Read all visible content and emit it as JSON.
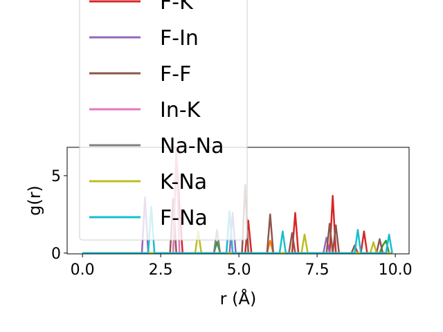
{
  "chart_data": {
    "type": "line",
    "x_label": "r (Å)",
    "y_label": "g(r)",
    "xlim": [
      -0.49,
      10.44
    ],
    "ylim": [
      -0.05,
      6.83
    ],
    "xticks": [
      {
        "value": 0,
        "label": "0.0"
      },
      {
        "value": 2.5,
        "label": "2.5"
      },
      {
        "value": 5,
        "label": "5.0"
      },
      {
        "value": 7.5,
        "label": "7.5"
      },
      {
        "value": 10,
        "label": "10.0"
      }
    ],
    "yticks": [
      0,
      5
    ],
    "series": [
      {
        "color": "#ff7f0e",
        "x": [
          0,
          5.9,
          6.0,
          6.1,
          9.9
        ],
        "values": [
          0,
          0,
          0.8,
          0,
          0
        ]
      },
      {
        "color": "#2ca02c",
        "x": [
          0,
          4.2,
          4.3,
          4.4,
          9.5,
          9.6,
          9.7,
          9.8,
          9.9
        ],
        "values": [
          0,
          0,
          0.7,
          0,
          0,
          0.5,
          0.8,
          0,
          0
        ]
      },
      {
        "name": "F-K",
        "color": "#d62728",
        "x": [
          0,
          2.9,
          3.0,
          3.1,
          3.2,
          5.2,
          5.3,
          5.4,
          6.7,
          6.8,
          6.9,
          7.9,
          8.0,
          8.1,
          8.9,
          9.0,
          9.1,
          9.9
        ],
        "values": [
          0,
          0,
          6.4,
          3.0,
          0,
          0,
          2.1,
          0,
          0,
          2.6,
          0,
          0,
          3.7,
          0,
          0,
          1.4,
          0,
          0
        ]
      },
      {
        "name": "F-In",
        "color": "#9467bd",
        "x": [
          0,
          1.9,
          2.0,
          2.1,
          4.7,
          4.8,
          4.9,
          7.7,
          7.8,
          7.9,
          9.9
        ],
        "values": [
          0,
          0,
          3.6,
          0,
          0,
          2.6,
          0,
          0,
          1.0,
          0,
          0
        ]
      },
      {
        "name": "F-F",
        "color": "#8c564b",
        "x": [
          0,
          2.8,
          2.9,
          3.0,
          5.1,
          5.2,
          5.3,
          5.9,
          6.0,
          6.1,
          6.6,
          6.7,
          6.8,
          7.8,
          7.9,
          8.0,
          8.1,
          8.2,
          8.6,
          8.7,
          8.8,
          9.4,
          9.5,
          9.6,
          9.9
        ],
        "values": [
          0,
          0,
          3.5,
          0,
          0,
          4.4,
          0,
          0,
          2.5,
          0,
          0,
          1.3,
          0,
          0,
          1.9,
          0,
          1.8,
          0,
          0,
          0.5,
          0,
          0,
          0.9,
          0,
          0
        ]
      },
      {
        "name": "In-K",
        "color": "#e377c2",
        "x": [
          0,
          2.9,
          3.0,
          3.1,
          4.6,
          4.7,
          4.8,
          9.9
        ],
        "values": [
          0,
          0,
          6.8,
          0,
          0,
          2.7,
          0,
          0
        ]
      },
      {
        "name": "Na-Na",
        "color": "#7f7f7f",
        "x": [
          0,
          4.2,
          4.3,
          4.4,
          9.9
        ],
        "values": [
          0,
          0,
          1.5,
          0,
          0
        ]
      },
      {
        "name": "K-Na",
        "color": "#bcbd22",
        "x": [
          0,
          3.6,
          3.7,
          3.8,
          7.0,
          7.1,
          7.2,
          9.2,
          9.3,
          9.4,
          9.9
        ],
        "values": [
          0,
          0,
          1.4,
          0,
          0,
          1.2,
          0,
          0,
          0.7,
          0,
          0
        ]
      },
      {
        "name": "F-Na",
        "color": "#17becf",
        "x": [
          0,
          2.1,
          2.2,
          2.3,
          4.6,
          4.7,
          4.8,
          6.3,
          6.4,
          6.5,
          8.7,
          8.8,
          8.9,
          9.7,
          9.8,
          9.9
        ],
        "values": [
          0,
          0,
          3.0,
          0,
          0,
          2.7,
          0,
          0,
          1.4,
          0,
          0,
          1.5,
          0,
          0,
          1.2,
          0
        ]
      }
    ]
  }
}
